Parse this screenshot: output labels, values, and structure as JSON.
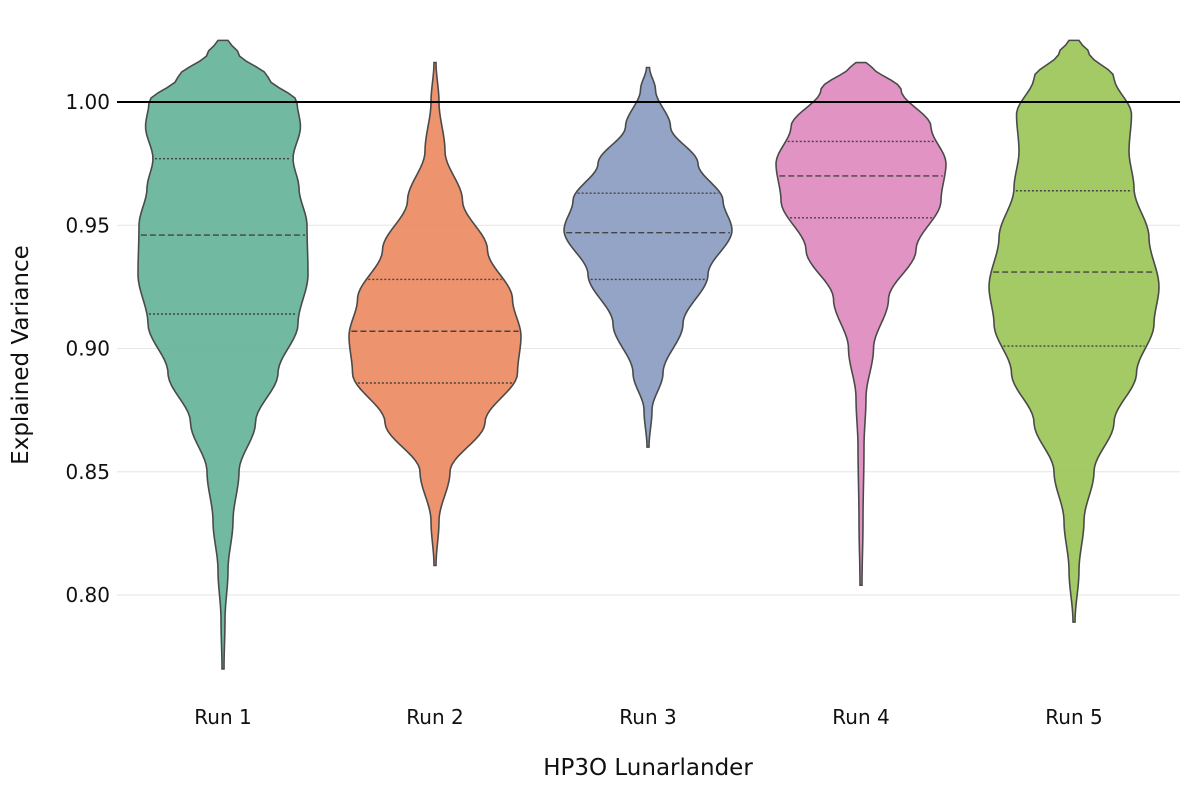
{
  "chart_data": {
    "type": "violin",
    "title": "",
    "xlabel": "HP3O  Lunarlander",
    "ylabel": "Explained Variance",
    "ylim": [
      0.76,
      1.025
    ],
    "yticks": [
      "0.80",
      "0.85",
      "0.90",
      "0.95",
      "1.00"
    ],
    "ytick_values": [
      0.8,
      0.85,
      0.9,
      0.95,
      1.0
    ],
    "reference_line": 1.0,
    "grid": "horizontal",
    "legend": "none",
    "categories": [
      "Run 1",
      "Run 2",
      "Run 3",
      "Run 4",
      "Run 5"
    ],
    "colors": [
      "#66b39a",
      "#ec8a62",
      "#8b9cc1",
      "#de8bbe",
      "#9cc558"
    ],
    "outline_color": "#4a4a4a",
    "series": [
      {
        "min": 0.77,
        "max": 1.025,
        "q1": 0.914,
        "median": 0.946,
        "q3": 0.977,
        "profile": [
          [
            0.77,
            0.002
          ],
          [
            0.79,
            0.004
          ],
          [
            0.81,
            0.01
          ],
          [
            0.83,
            0.02
          ],
          [
            0.85,
            0.032
          ],
          [
            0.87,
            0.065
          ],
          [
            0.89,
            0.11
          ],
          [
            0.91,
            0.15
          ],
          [
            0.93,
            0.17
          ],
          [
            0.95,
            0.168
          ],
          [
            0.965,
            0.152
          ],
          [
            0.977,
            0.14
          ],
          [
            0.99,
            0.155
          ],
          [
            1.0,
            0.148
          ],
          [
            1.01,
            0.09
          ],
          [
            1.02,
            0.03
          ],
          [
            1.025,
            0.01
          ]
        ]
      },
      {
        "min": 0.812,
        "max": 1.016,
        "q1": 0.886,
        "median": 0.907,
        "q3": 0.928,
        "profile": [
          [
            0.812,
            0.002
          ],
          [
            0.83,
            0.008
          ],
          [
            0.85,
            0.03
          ],
          [
            0.87,
            0.1
          ],
          [
            0.89,
            0.165
          ],
          [
            0.905,
            0.172
          ],
          [
            0.92,
            0.155
          ],
          [
            0.94,
            0.105
          ],
          [
            0.96,
            0.055
          ],
          [
            0.98,
            0.02
          ],
          [
            1.0,
            0.008
          ],
          [
            1.016,
            0.002
          ]
        ]
      },
      {
        "min": 0.86,
        "max": 1.014,
        "q1": 0.928,
        "median": 0.947,
        "q3": 0.963,
        "profile": [
          [
            0.86,
            0.002
          ],
          [
            0.875,
            0.008
          ],
          [
            0.89,
            0.03
          ],
          [
            0.91,
            0.07
          ],
          [
            0.93,
            0.12
          ],
          [
            0.948,
            0.168
          ],
          [
            0.96,
            0.15
          ],
          [
            0.975,
            0.1
          ],
          [
            0.99,
            0.045
          ],
          [
            1.005,
            0.015
          ],
          [
            1.014,
            0.003
          ]
        ]
      },
      {
        "min": 0.804,
        "max": 1.016,
        "q1": 0.953,
        "median": 0.97,
        "q3": 0.984,
        "profile": [
          [
            0.804,
            0.002
          ],
          [
            0.83,
            0.004
          ],
          [
            0.86,
            0.006
          ],
          [
            0.88,
            0.01
          ],
          [
            0.9,
            0.025
          ],
          [
            0.92,
            0.055
          ],
          [
            0.94,
            0.11
          ],
          [
            0.96,
            0.16
          ],
          [
            0.975,
            0.17
          ],
          [
            0.99,
            0.14
          ],
          [
            1.005,
            0.08
          ],
          [
            1.015,
            0.02
          ],
          [
            1.016,
            0.01
          ]
        ]
      },
      {
        "min": 0.789,
        "max": 1.025,
        "q1": 0.901,
        "median": 0.931,
        "q3": 0.964,
        "profile": [
          [
            0.789,
            0.002
          ],
          [
            0.81,
            0.01
          ],
          [
            0.83,
            0.02
          ],
          [
            0.85,
            0.04
          ],
          [
            0.87,
            0.08
          ],
          [
            0.89,
            0.125
          ],
          [
            0.91,
            0.16
          ],
          [
            0.925,
            0.17
          ],
          [
            0.945,
            0.15
          ],
          [
            0.965,
            0.12
          ],
          [
            0.98,
            0.11
          ],
          [
            0.995,
            0.115
          ],
          [
            1.01,
            0.08
          ],
          [
            1.02,
            0.03
          ],
          [
            1.025,
            0.01
          ]
        ]
      }
    ]
  }
}
